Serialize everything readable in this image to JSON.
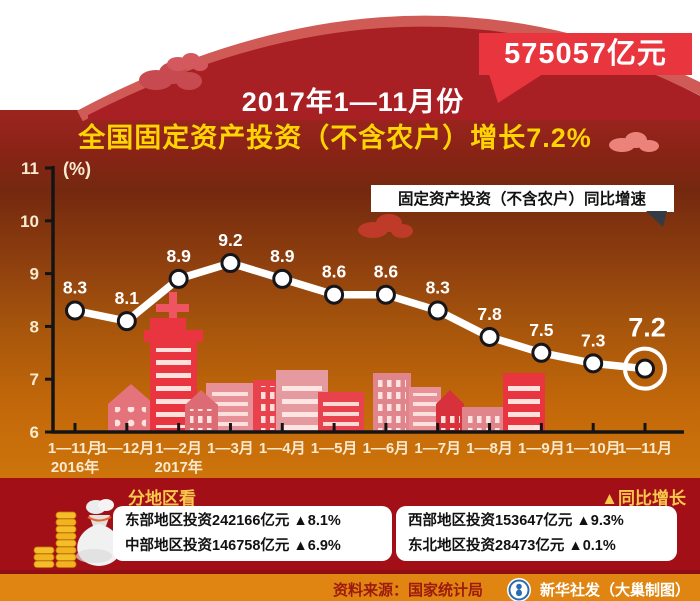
{
  "hero": {
    "badge": "575057亿元",
    "title_line1": "2017年1—11月份",
    "title_line2": "全国固定资产投资（不含农户）增长7.2%"
  },
  "chart_data": {
    "type": "line",
    "title": "固定资产投资（不含农户）同比增速",
    "unit": "(%)",
    "categories": [
      "1—11月",
      "1—12月",
      "1—2月",
      "1—3月",
      "1—4月",
      "1—5月",
      "1—6月",
      "1—7月",
      "1—8月",
      "1—9月",
      "1—10月",
      "1—11月"
    ],
    "category_sublabels": {
      "0": "2016年",
      "2": "2017年"
    },
    "values": [
      8.3,
      8.1,
      8.9,
      9.2,
      8.9,
      8.6,
      8.6,
      8.3,
      7.8,
      7.5,
      7.3,
      7.2
    ],
    "ylim": [
      6,
      11
    ],
    "yticks": [
      6,
      7,
      8,
      9,
      10,
      11
    ],
    "grid": false,
    "legend_position": "top-right",
    "highlight_last_point": true,
    "line_color": "#ffffff"
  },
  "regions": {
    "section_label": "分地区看",
    "growth_note": "▲同比增长",
    "left_box": [
      "东部地区投资242166亿元  ▲8.1%",
      "中部地区投资146758亿元  ▲6.9%"
    ],
    "right_box": [
      "西部地区投资153647亿元  ▲9.3%",
      "东北地区投资28473亿元  ▲0.1%"
    ]
  },
  "footer": {
    "source": "资料来源：国家统计局",
    "credit": "新华社发（大巢制图）"
  },
  "colors": {
    "badge_red": "#e8353e",
    "arch_red": "#a81f24",
    "arch_rim": "#d05a55",
    "title_gold": "#ffd403",
    "band_bottom": "#a30f16",
    "footer_orange": "#e08511",
    "cream_text": "#f9ead0",
    "gold_text": "#f9c84c",
    "source_text": "#9c1a0e",
    "logo_blue": "#2b6cb0",
    "line_white": "#ffffff"
  }
}
